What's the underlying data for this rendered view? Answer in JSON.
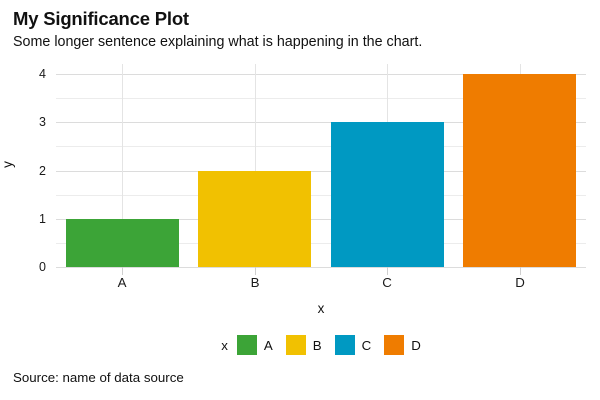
{
  "chart_data": {
    "type": "bar",
    "title": "My Significance Plot",
    "subtitle": "Some longer sentence explaining what is happening in the chart.",
    "caption": "Source: name of data source",
    "categories": [
      "A",
      "B",
      "C",
      "D"
    ],
    "values": [
      1,
      2,
      3,
      4
    ],
    "colors": [
      "#3CA437",
      "#F1C101",
      "#0099C2",
      "#EF7C00"
    ],
    "xlabel": "x",
    "ylabel": "y",
    "ylim": [
      0,
      4
    ],
    "y_ticks": [
      0,
      1,
      2,
      3,
      4
    ],
    "y_minor_ticks": [
      0.5,
      1.5,
      2.5,
      3.5
    ],
    "grid": "horizontal major+minor light gray, vertical major at category centers",
    "background": "#ffffff",
    "legend": {
      "title": "x",
      "entries": [
        "A",
        "B",
        "C",
        "D"
      ],
      "position": "bottom-center"
    }
  }
}
